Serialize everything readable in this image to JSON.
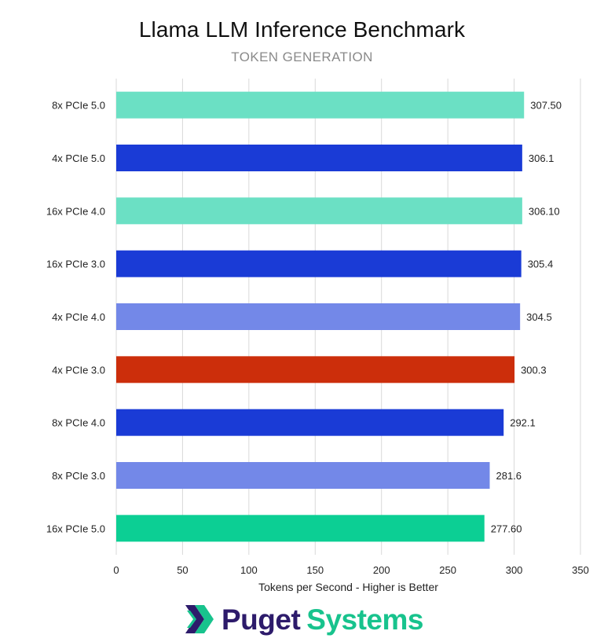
{
  "chart_data": {
    "type": "bar",
    "orientation": "horizontal",
    "title": "Llama LLM Inference Benchmark",
    "subtitle": "TOKEN GENERATION",
    "xlabel": "Tokens per Second - Higher is Better",
    "ylabel": "",
    "xlim": [
      0,
      350
    ],
    "xticks": [
      0,
      50,
      100,
      150,
      200,
      250,
      300,
      350
    ],
    "grid": true,
    "categories": [
      "8x PCIe 5.0",
      "4x PCIe 5.0",
      "16x PCIe 4.0",
      "16x PCIe 3.0",
      "4x PCIe 4.0",
      "4x PCIe 3.0",
      "8x PCIe 4.0",
      "8x PCIe 3.0",
      "16x PCIe 5.0"
    ],
    "values": [
      307.5,
      306.1,
      306.1,
      305.4,
      304.5,
      300.3,
      292.1,
      281.6,
      277.6
    ],
    "value_labels": [
      "307.50",
      "306.1",
      "306.10",
      "305.4",
      "304.5",
      "300.3",
      "292.1",
      "281.6",
      "277.60"
    ],
    "bar_colors": [
      "#6be0c4",
      "#1a3bd6",
      "#6be0c4",
      "#1a3bd6",
      "#7388e8",
      "#cc2e0b",
      "#1a3bd6",
      "#7388e8",
      "#0ccf94"
    ]
  },
  "branding": {
    "logo_word_1": "Puget",
    "logo_word_2": "Systems",
    "logo_icon": "puget-chevron-icon",
    "logo_colors": {
      "dark": "#2d1b6b",
      "accent": "#18c38d"
    }
  }
}
